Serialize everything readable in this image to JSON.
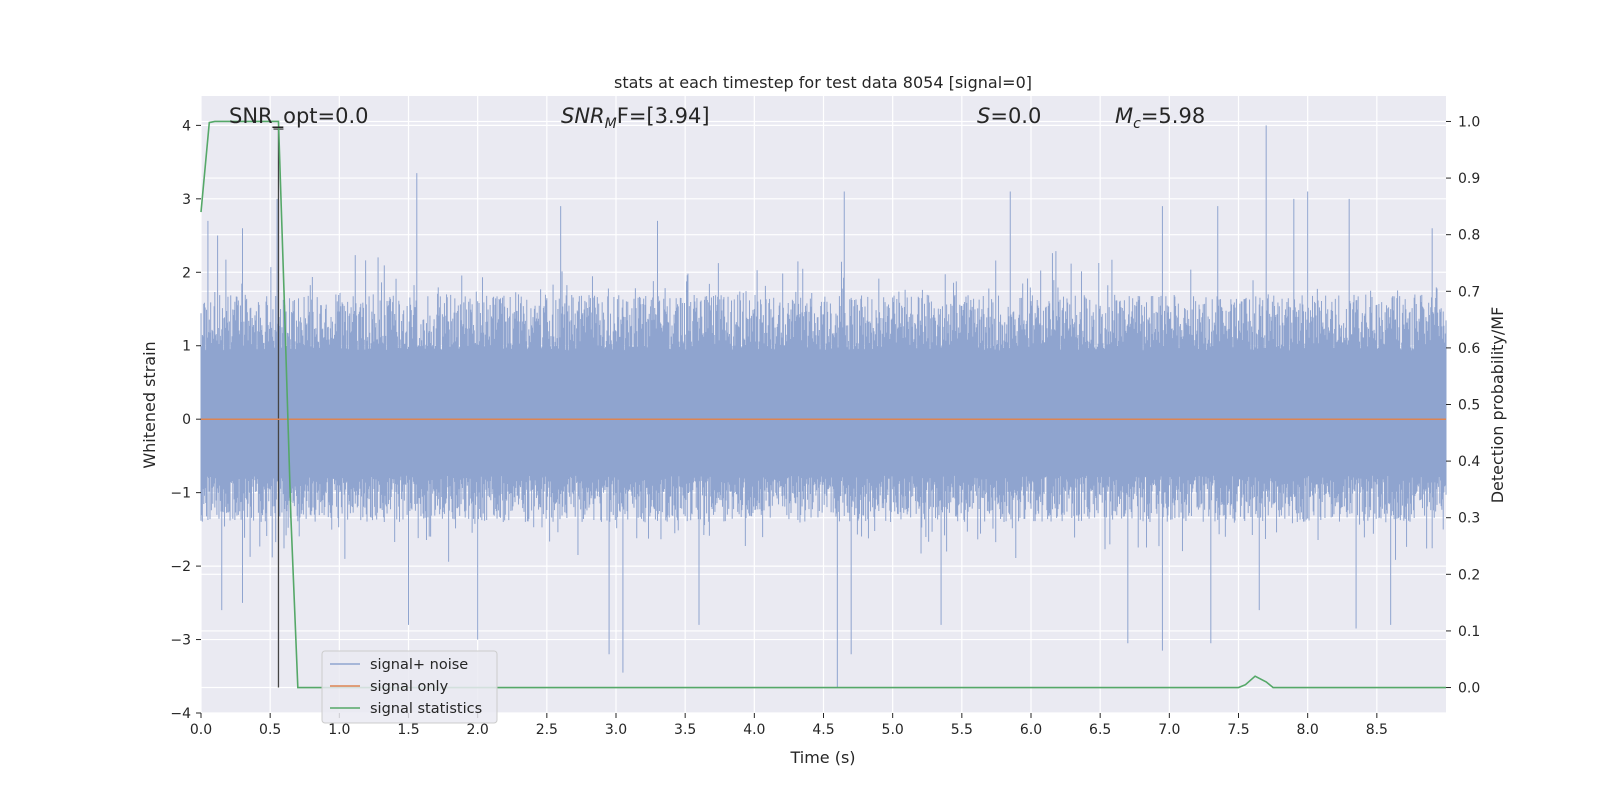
{
  "chart_data": {
    "type": "line",
    "title": "stats at each timestep for test data 8054 [signal=0]",
    "xlabel": "Time (s)",
    "ylabel": "Whitened strain",
    "y2label": "Detection probability/MF",
    "xlim": [
      0.0,
      9.0
    ],
    "ylim": [
      -4.0,
      4.4
    ],
    "y2lim": [
      -0.045,
      1.045
    ],
    "xticks": [
      "0.0",
      "0.5",
      "1.0",
      "1.5",
      "2.0",
      "2.5",
      "3.0",
      "3.5",
      "4.0",
      "4.5",
      "5.0",
      "5.5",
      "6.0",
      "6.5",
      "7.0",
      "7.5",
      "8.0",
      "8.5"
    ],
    "yticks": [
      "4",
      "3",
      "2",
      "1",
      "0",
      "−1",
      "−2",
      "−3",
      "−4"
    ],
    "y2ticks": [
      "1.0",
      "0.9",
      "0.8",
      "0.7",
      "0.6",
      "0.5",
      "0.4",
      "0.3",
      "0.2",
      "0.1",
      "0.0"
    ],
    "grid": true,
    "legend_position": "lower-left",
    "annotations": {
      "snr_opt": "SNR_opt=0.0",
      "snr_mf_main": "SNR",
      "snr_mf_sub": "M",
      "snr_mf_rest": "F=[3.94]",
      "s_symbol": "S",
      "s_rest": "=0.0",
      "mc_main": "M",
      "mc_sub": "c",
      "mc_rest": "=5.98"
    },
    "marker_time": 0.56,
    "series": [
      {
        "name": "signal+ noise",
        "color": "#8fa4cf",
        "description_envelope": {
          "typical_band": [
            -1.4,
            1.7
          ],
          "peak_spikes": [
            {
              "x": 0.05,
              "y": 2.7
            },
            {
              "x": 0.12,
              "y": 2.5
            },
            {
              "x": 0.3,
              "y": 2.6
            },
            {
              "x": 0.55,
              "y": 3.0
            },
            {
              "x": 1.56,
              "y": 3.35
            },
            {
              "x": 2.6,
              "y": 2.9
            },
            {
              "x": 3.3,
              "y": 2.7
            },
            {
              "x": 4.65,
              "y": 3.1
            },
            {
              "x": 5.85,
              "y": 3.1
            },
            {
              "x": 6.95,
              "y": 2.9
            },
            {
              "x": 7.35,
              "y": 2.9
            },
            {
              "x": 7.7,
              "y": 4.0
            },
            {
              "x": 7.9,
              "y": 3.0
            },
            {
              "x": 8.0,
              "y": 3.1
            },
            {
              "x": 8.3,
              "y": 3.0
            },
            {
              "x": 8.9,
              "y": 2.6
            }
          ],
          "trough_spikes": [
            {
              "x": 0.15,
              "y": -2.6
            },
            {
              "x": 0.3,
              "y": -2.5
            },
            {
              "x": 1.5,
              "y": -2.8
            },
            {
              "x": 2.0,
              "y": -3.0
            },
            {
              "x": 2.95,
              "y": -3.2
            },
            {
              "x": 3.05,
              "y": -3.45
            },
            {
              "x": 3.6,
              "y": -2.8
            },
            {
              "x": 4.6,
              "y": -3.65
            },
            {
              "x": 4.7,
              "y": -3.2
            },
            {
              "x": 5.35,
              "y": -2.8
            },
            {
              "x": 6.7,
              "y": -3.05
            },
            {
              "x": 6.95,
              "y": -3.15
            },
            {
              "x": 7.3,
              "y": -3.05
            },
            {
              "x": 7.65,
              "y": -2.6
            },
            {
              "x": 8.35,
              "y": -2.85
            },
            {
              "x": 8.6,
              "y": -2.8
            }
          ]
        }
      },
      {
        "name": "signal only",
        "color": "#dd8452",
        "x": [
          0.0,
          9.0
        ],
        "y": [
          0.0,
          0.0
        ]
      },
      {
        "name": "signal statistics",
        "axis": "right",
        "color": "#55a868",
        "x": [
          0.0,
          0.06,
          0.1,
          0.2,
          0.3,
          0.4,
          0.5,
          0.56,
          0.6,
          0.65,
          0.7,
          0.8,
          1.0,
          2.0,
          3.0,
          4.0,
          5.0,
          6.0,
          7.0,
          7.5,
          7.55,
          7.62,
          7.7,
          7.75,
          7.8,
          8.0,
          8.4,
          9.0
        ],
        "y": [
          0.84,
          0.998,
          1.0,
          1.0,
          1.0,
          1.0,
          1.0,
          1.0,
          0.7,
          0.3,
          0.0,
          0.0,
          0.0,
          0.0,
          0.0,
          0.0,
          0.0,
          0.0,
          0.0,
          0.0,
          0.005,
          0.02,
          0.01,
          0.0,
          0.0,
          0.0,
          0.0,
          0.0
        ]
      }
    ]
  }
}
